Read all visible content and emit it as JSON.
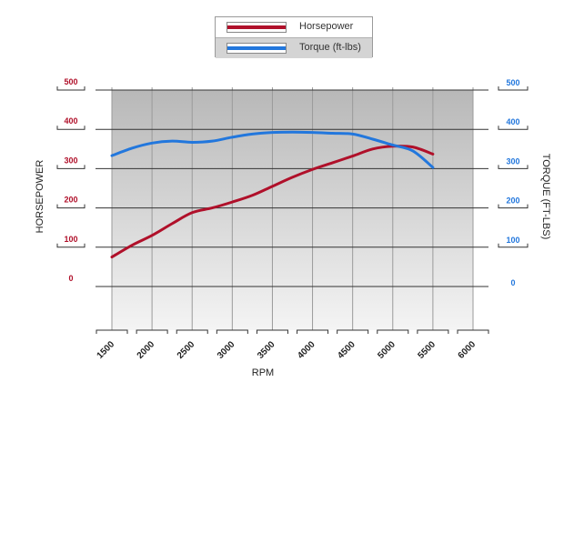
{
  "legend": {
    "horsepower_label": "Horsepower",
    "torque_label": "Torque (ft-lbs)"
  },
  "colors": {
    "horsepower": "#b0102a",
    "torque": "#2277dd",
    "plot_bg_top": "#b8b8b8",
    "plot_bg_bottom": "#f4f4f4"
  },
  "chart_data": {
    "type": "line",
    "xlabel": "RPM",
    "ylabel_left": "HORSEPOWER",
    "ylabel_right": "TORQUE (FT-LBS)",
    "xlim": [
      1500,
      6000
    ],
    "ylim": [
      0,
      500
    ],
    "x_ticks": [
      "1500",
      "2000",
      "2500",
      "3000",
      "3500",
      "4000",
      "4500",
      "5000",
      "5500",
      "6000"
    ],
    "y_ticks_left": [
      "0",
      "100",
      "200",
      "300",
      "400",
      "500"
    ],
    "y_ticks_right": [
      "0",
      "100",
      "200",
      "300",
      "400",
      "500"
    ],
    "grid": true,
    "legend_position": "top-center",
    "series": [
      {
        "name": "Horsepower",
        "axis": "left",
        "x": [
          1500,
          1750,
          2000,
          2250,
          2500,
          2750,
          3000,
          3250,
          3500,
          3750,
          4000,
          4250,
          4500,
          4750,
          5000,
          5250,
          5500
        ],
        "values": [
          75,
          105,
          130,
          160,
          188,
          200,
          215,
          232,
          255,
          278,
          298,
          315,
          332,
          350,
          357,
          355,
          337
        ]
      },
      {
        "name": "Torque (ft-lbs)",
        "axis": "right",
        "x": [
          1500,
          1750,
          2000,
          2250,
          2500,
          2750,
          3000,
          3250,
          3500,
          3750,
          4000,
          4250,
          4500,
          4750,
          5000,
          5250,
          5500
        ],
        "values": [
          333,
          352,
          365,
          370,
          367,
          370,
          380,
          388,
          392,
          393,
          392,
          390,
          388,
          375,
          360,
          345,
          303
        ]
      }
    ]
  }
}
